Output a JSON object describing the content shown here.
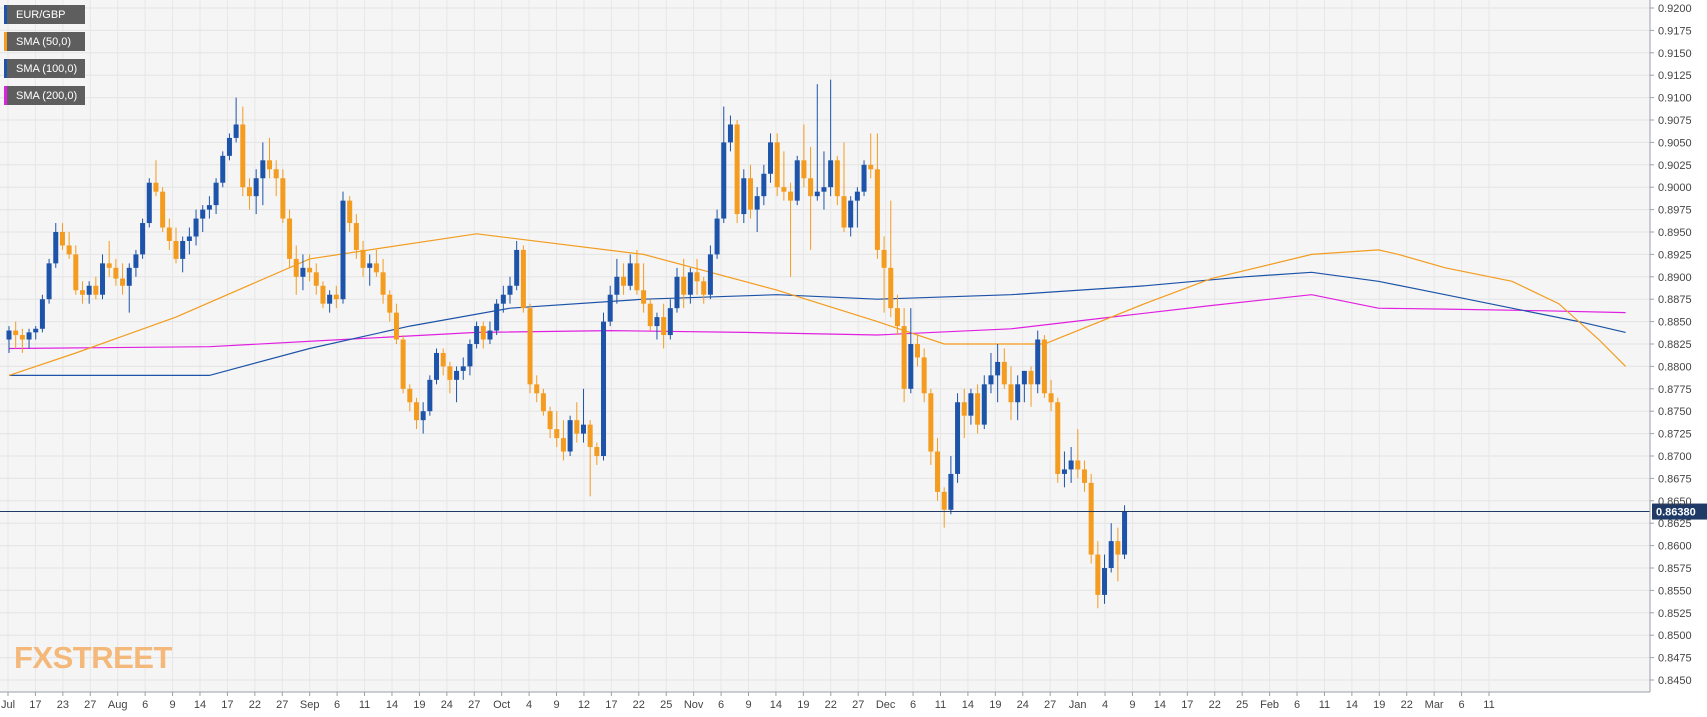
{
  "legend": [
    {
      "label": "EUR/GBP",
      "color": "#1d53a8"
    },
    {
      "label": "SMA (50,0)",
      "color": "#f39c1f"
    },
    {
      "label": "SMA (100,0)",
      "color": "#1d53a8"
    },
    {
      "label": "SMA (200,0)",
      "color": "#e020e0"
    }
  ],
  "logo": "FXSTREET",
  "colors": {
    "bull": "#1d53a8",
    "bear": "#f39c1f",
    "sma50": "#f39c1f",
    "sma100": "#1d53a8",
    "sma200": "#e020e0",
    "price_line": "#1f3a66"
  },
  "chart_data": {
    "type": "candlestick",
    "instrument": "EUR/GBP",
    "timeframe": "daily",
    "ylim": [
      0.845,
      0.92
    ],
    "y_ticks": [
      "0.8450",
      "0.8475",
      "0.8500",
      "0.8525",
      "0.8550",
      "0.8575",
      "0.8600",
      "0.8625",
      "0.8650",
      "0.8675",
      "0.8700",
      "0.8725",
      "0.8750",
      "0.8775",
      "0.8800",
      "0.8825",
      "0.8850",
      "0.8875",
      "0.8900",
      "0.8925",
      "0.8950",
      "0.8975",
      "0.9000",
      "0.9025",
      "0.9050",
      "0.9075",
      "0.9100",
      "0.9125",
      "0.9150",
      "0.9175",
      "0.9200"
    ],
    "x_ticks": [
      "Jul",
      "17",
      "23",
      "27",
      "Aug",
      "6",
      "9",
      "14",
      "17",
      "22",
      "27",
      "Sep",
      "6",
      "11",
      "14",
      "19",
      "24",
      "27",
      "Oct",
      "4",
      "9",
      "12",
      "17",
      "22",
      "25",
      "Nov",
      "6",
      "9",
      "14",
      "19",
      "22",
      "27",
      "Dec",
      "6",
      "11",
      "14",
      "19",
      "24",
      "27",
      "Jan",
      "4",
      "9",
      "14",
      "17",
      "22",
      "25",
      "Feb",
      "6",
      "11",
      "14",
      "19",
      "22",
      "Mar",
      "6",
      "11"
    ],
    "current_price": {
      "value": 0.8638,
      "label": "0.86380"
    },
    "candles": [
      [
        0.883,
        0.8845,
        0.8815,
        0.884
      ],
      [
        0.884,
        0.885,
        0.882,
        0.8835
      ],
      [
        0.8835,
        0.8842,
        0.8815,
        0.883
      ],
      [
        0.883,
        0.8842,
        0.882,
        0.8838
      ],
      [
        0.8838,
        0.8845,
        0.883,
        0.8842
      ],
      [
        0.8842,
        0.888,
        0.8838,
        0.8875
      ],
      [
        0.8875,
        0.892,
        0.887,
        0.8915
      ],
      [
        0.8915,
        0.896,
        0.891,
        0.895
      ],
      [
        0.895,
        0.896,
        0.893,
        0.8935
      ],
      [
        0.8935,
        0.895,
        0.892,
        0.8925
      ],
      [
        0.8925,
        0.8935,
        0.888,
        0.8885
      ],
      [
        0.8885,
        0.8895,
        0.887,
        0.888
      ],
      [
        0.888,
        0.8895,
        0.887,
        0.889
      ],
      [
        0.889,
        0.89,
        0.8875,
        0.888
      ],
      [
        0.888,
        0.8925,
        0.8875,
        0.8915
      ],
      [
        0.8915,
        0.894,
        0.89,
        0.891
      ],
      [
        0.891,
        0.892,
        0.889,
        0.8898
      ],
      [
        0.8898,
        0.8915,
        0.888,
        0.889
      ],
      [
        0.889,
        0.8915,
        0.886,
        0.891
      ],
      [
        0.891,
        0.893,
        0.89,
        0.8925
      ],
      [
        0.8925,
        0.8965,
        0.892,
        0.896
      ],
      [
        0.896,
        0.901,
        0.8955,
        0.9005
      ],
      [
        0.9005,
        0.903,
        0.899,
        0.8995
      ],
      [
        0.8995,
        0.9,
        0.895,
        0.8955
      ],
      [
        0.8955,
        0.8965,
        0.893,
        0.894
      ],
      [
        0.894,
        0.8955,
        0.8915,
        0.892
      ],
      [
        0.892,
        0.8945,
        0.8905,
        0.894
      ],
      [
        0.894,
        0.8955,
        0.8925,
        0.8945
      ],
      [
        0.8945,
        0.8975,
        0.8935,
        0.8965
      ],
      [
        0.8965,
        0.898,
        0.895,
        0.8975
      ],
      [
        0.8975,
        0.899,
        0.8965,
        0.898
      ],
      [
        0.898,
        0.901,
        0.897,
        0.9005
      ],
      [
        0.9005,
        0.904,
        0.9,
        0.9035
      ],
      [
        0.9035,
        0.906,
        0.903,
        0.9055
      ],
      [
        0.9055,
        0.91,
        0.905,
        0.907
      ],
      [
        0.907,
        0.909,
        0.899,
        0.9
      ],
      [
        0.9,
        0.901,
        0.8975,
        0.899
      ],
      [
        0.899,
        0.902,
        0.897,
        0.901
      ],
      [
        0.901,
        0.905,
        0.898,
        0.903
      ],
      [
        0.903,
        0.9055,
        0.901,
        0.902
      ],
      [
        0.902,
        0.903,
        0.899,
        0.901
      ],
      [
        0.901,
        0.902,
        0.896,
        0.8965
      ],
      [
        0.8965,
        0.8975,
        0.891,
        0.892
      ],
      [
        0.892,
        0.8935,
        0.888,
        0.89
      ],
      [
        0.89,
        0.8925,
        0.8885,
        0.891
      ],
      [
        0.891,
        0.8925,
        0.8895,
        0.8905
      ],
      [
        0.8905,
        0.8915,
        0.888,
        0.889
      ],
      [
        0.889,
        0.8895,
        0.8865,
        0.887
      ],
      [
        0.887,
        0.8885,
        0.886,
        0.888
      ],
      [
        0.888,
        0.889,
        0.8865,
        0.8875
      ],
      [
        0.8875,
        0.8995,
        0.887,
        0.8985
      ],
      [
        0.8985,
        0.899,
        0.895,
        0.896
      ],
      [
        0.896,
        0.897,
        0.892,
        0.893
      ],
      [
        0.893,
        0.894,
        0.89,
        0.891
      ],
      [
        0.891,
        0.8925,
        0.889,
        0.8915
      ],
      [
        0.8915,
        0.893,
        0.89,
        0.8905
      ],
      [
        0.8905,
        0.892,
        0.887,
        0.888
      ],
      [
        0.888,
        0.8885,
        0.885,
        0.886
      ],
      [
        0.886,
        0.887,
        0.8825,
        0.883
      ],
      [
        0.883,
        0.8835,
        0.877,
        0.8775
      ],
      [
        0.8775,
        0.878,
        0.875,
        0.876
      ],
      [
        0.876,
        0.8765,
        0.873,
        0.874
      ],
      [
        0.874,
        0.876,
        0.8725,
        0.875
      ],
      [
        0.875,
        0.879,
        0.8745,
        0.8785
      ],
      [
        0.8785,
        0.882,
        0.878,
        0.8815
      ],
      [
        0.8815,
        0.882,
        0.879,
        0.88
      ],
      [
        0.88,
        0.8805,
        0.877,
        0.8785
      ],
      [
        0.8785,
        0.88,
        0.876,
        0.8795
      ],
      [
        0.8795,
        0.881,
        0.8785,
        0.88
      ],
      [
        0.88,
        0.883,
        0.879,
        0.8825
      ],
      [
        0.8825,
        0.885,
        0.882,
        0.8845
      ],
      [
        0.8845,
        0.885,
        0.882,
        0.883
      ],
      [
        0.883,
        0.885,
        0.8825,
        0.884
      ],
      [
        0.884,
        0.8875,
        0.8835,
        0.887
      ],
      [
        0.887,
        0.889,
        0.886,
        0.888
      ],
      [
        0.888,
        0.89,
        0.887,
        0.889
      ],
      [
        0.889,
        0.894,
        0.8885,
        0.893
      ],
      [
        0.893,
        0.8935,
        0.886,
        0.8865
      ],
      [
        0.8865,
        0.887,
        0.877,
        0.878
      ],
      [
        0.878,
        0.879,
        0.876,
        0.877
      ],
      [
        0.877,
        0.8775,
        0.8745,
        0.875
      ],
      [
        0.875,
        0.8755,
        0.872,
        0.873
      ],
      [
        0.873,
        0.875,
        0.871,
        0.872
      ],
      [
        0.872,
        0.874,
        0.8695,
        0.8705
      ],
      [
        0.8705,
        0.8745,
        0.87,
        0.874
      ],
      [
        0.874,
        0.876,
        0.8715,
        0.8725
      ],
      [
        0.8725,
        0.8775,
        0.8715,
        0.8735
      ],
      [
        0.8735,
        0.874,
        0.8655,
        0.871
      ],
      [
        0.871,
        0.8715,
        0.869,
        0.87
      ],
      [
        0.87,
        0.886,
        0.8695,
        0.885
      ],
      [
        0.885,
        0.889,
        0.8845,
        0.888
      ],
      [
        0.888,
        0.892,
        0.887,
        0.89
      ],
      [
        0.89,
        0.8915,
        0.888,
        0.889
      ],
      [
        0.889,
        0.8925,
        0.8885,
        0.8915
      ],
      [
        0.8915,
        0.893,
        0.888,
        0.8885
      ],
      [
        0.8885,
        0.8915,
        0.886,
        0.887
      ],
      [
        0.887,
        0.8875,
        0.884,
        0.8845
      ],
      [
        0.8845,
        0.886,
        0.883,
        0.8855
      ],
      [
        0.8855,
        0.887,
        0.882,
        0.8835
      ],
      [
        0.8835,
        0.8875,
        0.883,
        0.8865
      ],
      [
        0.8865,
        0.891,
        0.886,
        0.89
      ],
      [
        0.89,
        0.892,
        0.8865,
        0.888
      ],
      [
        0.888,
        0.891,
        0.887,
        0.8905
      ],
      [
        0.8905,
        0.892,
        0.888,
        0.8895
      ],
      [
        0.8895,
        0.89,
        0.887,
        0.888
      ],
      [
        0.888,
        0.8935,
        0.8875,
        0.8925
      ],
      [
        0.8925,
        0.8975,
        0.892,
        0.8965
      ],
      [
        0.8965,
        0.909,
        0.896,
        0.905
      ],
      [
        0.905,
        0.908,
        0.904,
        0.907
      ],
      [
        0.907,
        0.9075,
        0.896,
        0.897
      ],
      [
        0.897,
        0.902,
        0.896,
        0.901
      ],
      [
        0.901,
        0.9025,
        0.8965,
        0.8975
      ],
      [
        0.8975,
        0.9,
        0.895,
        0.899
      ],
      [
        0.899,
        0.9025,
        0.898,
        0.9015
      ],
      [
        0.9015,
        0.906,
        0.9005,
        0.905
      ],
      [
        0.905,
        0.906,
        0.899,
        0.9
      ],
      [
        0.9,
        0.904,
        0.8985,
        0.8995
      ],
      [
        0.8995,
        0.9005,
        0.89,
        0.8985
      ],
      [
        0.8985,
        0.9035,
        0.898,
        0.903
      ],
      [
        0.903,
        0.907,
        0.9,
        0.901
      ],
      [
        0.901,
        0.9045,
        0.893,
        0.899
      ],
      [
        0.899,
        0.9115,
        0.8985,
        0.8995
      ],
      [
        0.8995,
        0.904,
        0.8975,
        0.9
      ],
      [
        0.9,
        0.912,
        0.899,
        0.903
      ],
      [
        0.903,
        0.9035,
        0.898,
        0.899
      ],
      [
        0.899,
        0.905,
        0.895,
        0.8955
      ],
      [
        0.8955,
        0.899,
        0.8945,
        0.8985
      ],
      [
        0.8985,
        0.9,
        0.8955,
        0.8995
      ],
      [
        0.8995,
        0.903,
        0.899,
        0.9025
      ],
      [
        0.9025,
        0.906,
        0.901,
        0.902
      ],
      [
        0.902,
        0.906,
        0.892,
        0.893
      ],
      [
        0.893,
        0.8945,
        0.886,
        0.891
      ],
      [
        0.891,
        0.8985,
        0.8855,
        0.8865
      ],
      [
        0.8865,
        0.888,
        0.8835,
        0.8845
      ],
      [
        0.8845,
        0.8865,
        0.876,
        0.8775
      ],
      [
        0.8775,
        0.8865,
        0.877,
        0.8825
      ],
      [
        0.8825,
        0.8835,
        0.88,
        0.881
      ],
      [
        0.881,
        0.882,
        0.876,
        0.877
      ],
      [
        0.877,
        0.8775,
        0.869,
        0.8705
      ],
      [
        0.8705,
        0.872,
        0.865,
        0.866
      ],
      [
        0.866,
        0.8665,
        0.862,
        0.864
      ],
      [
        0.864,
        0.87,
        0.8635,
        0.868
      ],
      [
        0.868,
        0.877,
        0.867,
        0.876
      ],
      [
        0.876,
        0.8775,
        0.872,
        0.8745
      ],
      [
        0.8745,
        0.8775,
        0.8735,
        0.877
      ],
      [
        0.877,
        0.878,
        0.8725,
        0.8735
      ],
      [
        0.8735,
        0.879,
        0.873,
        0.878
      ],
      [
        0.878,
        0.8815,
        0.877,
        0.879
      ],
      [
        0.879,
        0.8825,
        0.876,
        0.8805
      ],
      [
        0.8805,
        0.882,
        0.8775,
        0.878
      ],
      [
        0.878,
        0.88,
        0.874,
        0.876
      ],
      [
        0.876,
        0.879,
        0.874,
        0.878
      ],
      [
        0.878,
        0.8795,
        0.876,
        0.8795
      ],
      [
        0.8795,
        0.88,
        0.8755,
        0.878
      ],
      [
        0.878,
        0.884,
        0.877,
        0.883
      ],
      [
        0.883,
        0.8835,
        0.8765,
        0.877
      ],
      [
        0.877,
        0.8785,
        0.875,
        0.876
      ],
      [
        0.876,
        0.8765,
        0.867,
        0.868
      ],
      [
        0.868,
        0.8705,
        0.8665,
        0.8685
      ],
      [
        0.8685,
        0.871,
        0.867,
        0.8695
      ],
      [
        0.8695,
        0.873,
        0.8675,
        0.8685
      ],
      [
        0.8685,
        0.8695,
        0.866,
        0.867
      ],
      [
        0.867,
        0.868,
        0.858,
        0.859
      ],
      [
        0.859,
        0.8605,
        0.853,
        0.8545
      ],
      [
        0.8545,
        0.859,
        0.8535,
        0.8575
      ],
      [
        0.8575,
        0.8625,
        0.857,
        0.8605
      ],
      [
        0.8605,
        0.862,
        0.856,
        0.859
      ],
      [
        0.859,
        0.8645,
        0.8585,
        0.8638
      ]
    ],
    "sma50": [
      [
        0,
        0.879
      ],
      [
        10,
        0.8815
      ],
      [
        25,
        0.8855
      ],
      [
        45,
        0.892
      ],
      [
        70,
        0.8948
      ],
      [
        95,
        0.8925
      ],
      [
        115,
        0.8885
      ],
      [
        130,
        0.885
      ],
      [
        140,
        0.8825
      ],
      [
        155,
        0.8825
      ],
      [
        160,
        0.884
      ],
      [
        170,
        0.887
      ],
      [
        180,
        0.8898
      ],
      [
        195,
        0.8925
      ],
      [
        205,
        0.893
      ],
      [
        208,
        0.8925
      ],
      [
        215,
        0.891
      ],
      [
        225,
        0.8895
      ],
      [
        232,
        0.887
      ],
      [
        238,
        0.883
      ],
      [
        242,
        0.88
      ]
    ],
    "sma100": [
      [
        0,
        0.879
      ],
      [
        30,
        0.879
      ],
      [
        45,
        0.882
      ],
      [
        60,
        0.8845
      ],
      [
        75,
        0.8865
      ],
      [
        95,
        0.8875
      ],
      [
        115,
        0.888
      ],
      [
        130,
        0.8875
      ],
      [
        150,
        0.888
      ],
      [
        170,
        0.889
      ],
      [
        185,
        0.89
      ],
      [
        195,
        0.8905
      ],
      [
        205,
        0.8895
      ],
      [
        215,
        0.888
      ],
      [
        225,
        0.8865
      ],
      [
        235,
        0.885
      ],
      [
        242,
        0.8838
      ]
    ],
    "sma200": [
      [
        0,
        0.882
      ],
      [
        30,
        0.8822
      ],
      [
        50,
        0.883
      ],
      [
        70,
        0.8838
      ],
      [
        90,
        0.884
      ],
      [
        110,
        0.8838
      ],
      [
        130,
        0.8835
      ],
      [
        150,
        0.8842
      ],
      [
        165,
        0.8855
      ],
      [
        180,
        0.8868
      ],
      [
        195,
        0.888
      ],
      [
        205,
        0.8865
      ],
      [
        215,
        0.8864
      ],
      [
        230,
        0.8862
      ],
      [
        242,
        0.886
      ]
    ]
  }
}
